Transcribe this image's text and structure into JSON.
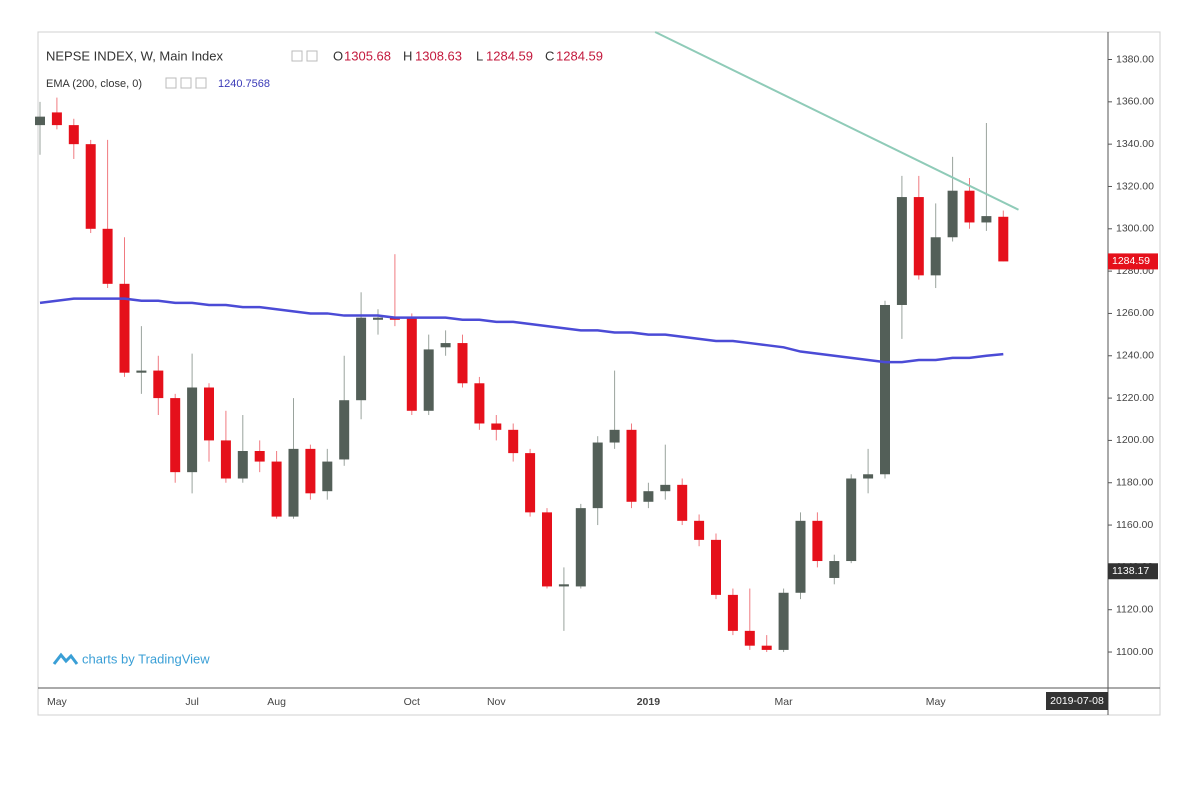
{
  "chart_data": {
    "type": "candlestick",
    "title": "NEPSE INDEX, W, Main Index",
    "ohlc_labels": [
      "O",
      "H",
      "L",
      "C"
    ],
    "watermark": "charts by TradingView",
    "cursor_date": "2019-07-08",
    "price_label": 1138.17,
    "categories": [
      null,
      "May",
      null,
      null,
      null,
      null,
      null,
      null,
      null,
      "Jul",
      null,
      null,
      null,
      null,
      "Aug",
      null,
      null,
      null,
      null,
      null,
      null,
      null,
      "Oct",
      null,
      null,
      null,
      null,
      "Nov",
      null,
      null,
      null,
      null,
      null,
      null,
      null,
      null,
      "2019",
      null,
      null,
      null,
      null,
      null,
      null,
      null,
      "Mar",
      null,
      null,
      null,
      null,
      null,
      null,
      null,
      null,
      "May",
      null,
      null,
      null,
      null
    ],
    "open": [
      1349,
      1355,
      1349,
      1340,
      1300,
      1274,
      1232,
      1233,
      1220,
      1185,
      1225,
      1200,
      1182,
      1195,
      1190,
      1164,
      1196,
      1176,
      1191,
      1219,
      1257,
      1258,
      1258,
      1214,
      1244,
      1246,
      1227,
      1208,
      1205,
      1194,
      1166,
      1131,
      1131,
      1168,
      1199,
      1205,
      1171,
      1176,
      1179,
      1162,
      1153,
      1127,
      1110,
      1103,
      1101,
      1128,
      1162,
      1135,
      1143,
      1182,
      1184,
      1264,
      1315,
      1278,
      1296,
      1318,
      1303,
      1305.68
    ],
    "high": [
      1360,
      1362,
      1352,
      1342,
      1342,
      1296,
      1254,
      1240,
      1222,
      1241,
      1227,
      1214,
      1212,
      1200,
      1195,
      1220,
      1198,
      1196,
      1240,
      1270,
      1262,
      1288,
      1260,
      1250,
      1252,
      1250,
      1230,
      1212,
      1208,
      1196,
      1168,
      1140,
      1170,
      1202,
      1233,
      1208,
      1180,
      1198,
      1182,
      1165,
      1156,
      1130,
      1130,
      1108,
      1130,
      1166,
      1166,
      1146,
      1184,
      1196,
      1266,
      1325,
      1325,
      1312,
      1334,
      1324,
      1350,
      1308.63
    ],
    "low": [
      1335,
      1347,
      1333,
      1298,
      1272,
      1230,
      1222,
      1212,
      1180,
      1175,
      1190,
      1180,
      1180,
      1185,
      1163,
      1163,
      1172,
      1172,
      1188,
      1210,
      1250,
      1254,
      1212,
      1212,
      1240,
      1225,
      1205,
      1200,
      1190,
      1164,
      1130,
      1110,
      1130,
      1160,
      1196,
      1168,
      1168,
      1172,
      1160,
      1150,
      1125,
      1108,
      1101,
      1100,
      1100,
      1125,
      1140,
      1132,
      1142,
      1175,
      1182,
      1248,
      1276,
      1272,
      1294,
      1300,
      1299,
      1284.59
    ],
    "close": [
      1353,
      1349,
      1340,
      1300,
      1274,
      1232,
      1233,
      1220,
      1185,
      1225,
      1200,
      1182,
      1195,
      1190,
      1164,
      1196,
      1175,
      1190,
      1219,
      1258,
      1258,
      1257,
      1214,
      1243,
      1246,
      1227,
      1208,
      1205,
      1194,
      1166,
      1131,
      1132,
      1168,
      1199,
      1205,
      1171,
      1176,
      1179,
      1162,
      1153,
      1127,
      1110,
      1103,
      1101,
      1128,
      1162,
      1143,
      1143,
      1182,
      1184,
      1264,
      1315,
      1278,
      1296,
      1318,
      1303,
      1306,
      1284.59
    ],
    "up_color": "#535f58",
    "down_color": "#e5101b",
    "series": [
      {
        "name": "EMA (200, close, 0)",
        "color": "#4b4bd6",
        "values": [
          1265,
          1266,
          1267,
          1267,
          1267,
          1267,
          1266,
          1266,
          1265,
          1265,
          1264,
          1264,
          1263,
          1263,
          1262,
          1261,
          1260,
          1260,
          1259,
          1259,
          1259,
          1258,
          1258,
          1258,
          1258,
          1257,
          1257,
          1256,
          1256,
          1255,
          1254,
          1253,
          1252,
          1252,
          1251,
          1251,
          1250,
          1250,
          1249,
          1248,
          1247,
          1247,
          1246,
          1245,
          1244,
          1242,
          1241,
          1240,
          1239,
          1238,
          1237,
          1237,
          1238,
          1238,
          1239,
          1239,
          1240,
          1240.7568
        ]
      }
    ],
    "trendline": {
      "color": "#8fcbb8",
      "x": [
        36.4,
        57.9
      ],
      "values": [
        1393,
        1309
      ]
    },
    "ylim": [
      1083,
      1393
    ],
    "yticks": [
      {
        "value": 1100,
        "label": "1100.00"
      },
      {
        "value": 1120,
        "label": "1120.00"
      },
      {
        "value": 1140,
        "label": "1140.00"
      },
      {
        "value": 1160,
        "label": "1160.00"
      },
      {
        "value": 1180,
        "label": "1180.00"
      },
      {
        "value": 1200,
        "label": "1200.00"
      },
      {
        "value": 1220,
        "label": "1220.00"
      },
      {
        "value": 1240,
        "label": "1240.00"
      },
      {
        "value": 1260,
        "label": "1260.00"
      },
      {
        "value": 1280,
        "label": "1280.00"
      },
      {
        "value": 1300,
        "label": "1300.00"
      },
      {
        "value": 1320,
        "label": "1320.00"
      },
      {
        "value": 1340,
        "label": "1340.00"
      },
      {
        "value": 1360,
        "label": "1360.00"
      },
      {
        "value": 1380,
        "label": "1380.00"
      }
    ]
  }
}
